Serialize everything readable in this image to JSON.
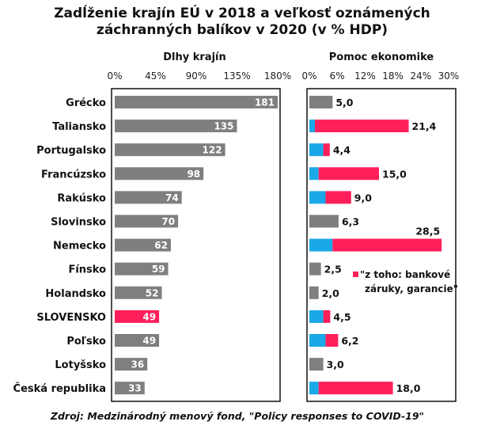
{
  "title_line1": "Zadĺženie krajín EÚ v 2018 a veľkosť oznámených",
  "title_line2": "záchranných balíkov v 2020 (v % HDP)",
  "source": "Zdroj: Medzinárodný menový fond, \"Policy responses to COVID-19\"",
  "chart_data": [
    {
      "type": "bar",
      "orientation": "horizontal",
      "title": "Dlhy krajín",
      "categories": [
        "Grécko",
        "Taliansko",
        "Portugalsko",
        "Francúzsko",
        "Rakúsko",
        "Slovinsko",
        "Nemecko",
        "Fínsko",
        "Holandsko",
        "SLOVENSKO",
        "Poľsko",
        "Lotyšsko",
        "Česká republika"
      ],
      "values": [
        181,
        135,
        122,
        98,
        74,
        70,
        62,
        59,
        52,
        49,
        49,
        36,
        33
      ],
      "xlim": [
        0,
        180
      ],
      "ticks": [
        "0%",
        "45%",
        "90%",
        "135%",
        "180%"
      ],
      "tick_values": [
        0,
        45,
        90,
        135,
        180
      ],
      "highlight_category": "SLOVENSKO",
      "colors": {
        "default": "#7f7f7f",
        "highlight": "#ff1f5a"
      }
    },
    {
      "type": "bar",
      "orientation": "horizontal",
      "stacked": true,
      "title": "Pomoc ekonomike",
      "categories": [
        "Grécko",
        "Taliansko",
        "Portugalsko",
        "Francúzsko",
        "Rakúsko",
        "Slovinsko",
        "Nemecko",
        "Fínsko",
        "Holandsko",
        "SLOVENSKO",
        "Poľsko",
        "Lotyšsko",
        "Česká republika"
      ],
      "totals": [
        5.0,
        21.4,
        4.4,
        15.0,
        9.0,
        6.3,
        28.5,
        2.5,
        2.0,
        4.5,
        6.2,
        3.0,
        18.0
      ],
      "total_labels": [
        "5,0",
        "21,4",
        "4,4",
        "15,0",
        "9,0",
        "6,3",
        "28,5",
        "2,5",
        "2,0",
        "4,5",
        "6,2",
        "3,0",
        "18,0"
      ],
      "direct_part": [
        0,
        1.2,
        3.0,
        2.0,
        3.5,
        0,
        5.0,
        0,
        0,
        3.0,
        3.5,
        0,
        2.0
      ],
      "guarantee_part": [
        0,
        20.2,
        1.4,
        13.0,
        5.5,
        0,
        23.5,
        0,
        0,
        1.5,
        2.7,
        0,
        16.0
      ],
      "xlim": [
        0,
        30
      ],
      "ticks": [
        "0%",
        "6%",
        "12%",
        "18%",
        "24%",
        "30%"
      ],
      "tick_values": [
        0,
        6,
        12,
        18,
        24,
        30
      ],
      "legend": {
        "text_line1": "\"z toho: bankové",
        "text_line2": "záruky, garancie\"",
        "color": "#ff1f5a"
      },
      "colors": {
        "plain": "#7f7f7f",
        "direct": "#1aa8e8",
        "guarantee": "#ff1f5a"
      }
    }
  ]
}
